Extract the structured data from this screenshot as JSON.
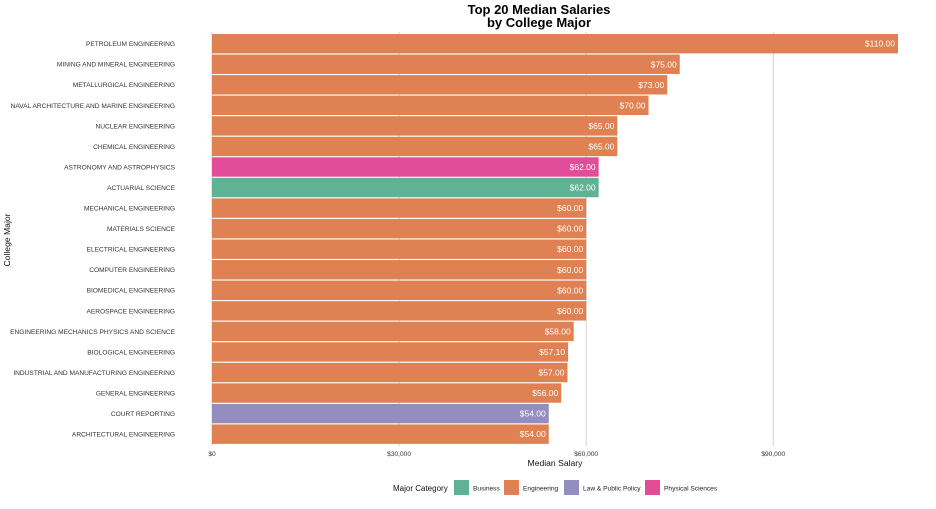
{
  "chart_data": {
    "type": "bar",
    "orientation": "horizontal",
    "title": "Top 20 Median Salaries",
    "subtitle": "by College Major",
    "xlabel": "Median Salary",
    "ylabel": "College Major",
    "xlim": [
      0,
      110000
    ],
    "x_ticks": [
      0,
      30000,
      60000,
      90000
    ],
    "x_tick_labels": [
      "$0",
      "$30,000",
      "$60,000",
      "$90,000"
    ],
    "grid": "vertical",
    "legend_title": "Major Category",
    "legend_position": "bottom",
    "categories_colors": [
      {
        "name": "Business",
        "color": "#5FB394"
      },
      {
        "name": "Engineering",
        "color": "#DF8152"
      },
      {
        "name": "Law & Public Policy",
        "color": "#938DC0"
      },
      {
        "name": "Physical Sciences",
        "color": "#E24C98"
      }
    ],
    "bars": [
      {
        "major": "PETROLEUM ENGINEERING",
        "value": 110000,
        "label": "$110.00",
        "category": "Engineering"
      },
      {
        "major": "MINING AND MINERAL ENGINEERING",
        "value": 75000,
        "label": "$75.00",
        "category": "Engineering"
      },
      {
        "major": "METALLURGICAL ENGINEERING",
        "value": 73000,
        "label": "$73.00",
        "category": "Engineering"
      },
      {
        "major": "NAVAL ARCHITECTURE AND MARINE ENGINEERING",
        "value": 70000,
        "label": "$70.00",
        "category": "Engineering"
      },
      {
        "major": "NUCLEAR ENGINEERING",
        "value": 65000,
        "label": "$65.00",
        "category": "Engineering"
      },
      {
        "major": "CHEMICAL ENGINEERING",
        "value": 65000,
        "label": "$65.00",
        "category": "Engineering"
      },
      {
        "major": "ASTRONOMY AND ASTROPHYSICS",
        "value": 62000,
        "label": "$62.00",
        "category": "Physical Sciences"
      },
      {
        "major": "ACTUARIAL SCIENCE",
        "value": 62000,
        "label": "$62.00",
        "category": "Business"
      },
      {
        "major": "MECHANICAL ENGINEERING",
        "value": 60000,
        "label": "$60.00",
        "category": "Engineering"
      },
      {
        "major": "MATERIALS SCIENCE",
        "value": 60000,
        "label": "$60.00",
        "category": "Engineering"
      },
      {
        "major": "ELECTRICAL ENGINEERING",
        "value": 60000,
        "label": "$60.00",
        "category": "Engineering"
      },
      {
        "major": "COMPUTER ENGINEERING",
        "value": 60000,
        "label": "$60.00",
        "category": "Engineering"
      },
      {
        "major": "BIOMEDICAL ENGINEERING",
        "value": 60000,
        "label": "$60.00",
        "category": "Engineering"
      },
      {
        "major": "AEROSPACE ENGINEERING",
        "value": 60000,
        "label": "$60.00",
        "category": "Engineering"
      },
      {
        "major": "ENGINEERING MECHANICS PHYSICS AND SCIENCE",
        "value": 58000,
        "label": "$58.00",
        "category": "Engineering"
      },
      {
        "major": "BIOLOGICAL ENGINEERING",
        "value": 57100,
        "label": "$57.10",
        "category": "Engineering"
      },
      {
        "major": "INDUSTRIAL AND MANUFACTURING ENGINEERING",
        "value": 57000,
        "label": "$57.00",
        "category": "Engineering"
      },
      {
        "major": "GENERAL ENGINEERING",
        "value": 56000,
        "label": "$56.00",
        "category": "Engineering"
      },
      {
        "major": "COURT REPORTING",
        "value": 54000,
        "label": "$54.00",
        "category": "Law & Public Policy"
      },
      {
        "major": "ARCHITECTURAL ENGINEERING",
        "value": 54000,
        "label": "$54.00",
        "category": "Engineering"
      }
    ]
  }
}
